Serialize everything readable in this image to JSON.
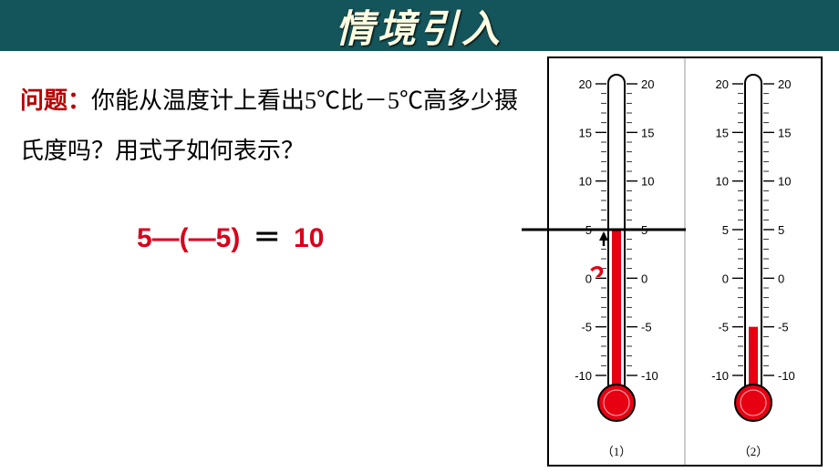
{
  "header": {
    "title": "情境引入",
    "bg_color": "#14555b",
    "title_color": "#fdfde0"
  },
  "question": {
    "label": "问题：",
    "text": "你能从温度计上看出5℃比－5℃高多少摄氏度吗？用式子如何表示？",
    "label_color": "#b80000",
    "text_color": "#000000",
    "fontsize": 26
  },
  "equation": {
    "lhs": "5―(―5)",
    "equals": "＝",
    "rhs": "10",
    "lhs_color": "#d9001b",
    "rhs_color": "#d9001b",
    "fontsize": 30
  },
  "thermometers": {
    "scale_min": -10,
    "scale_max": 20,
    "major_step": 5,
    "tick_labels": [
      20,
      15,
      10,
      5,
      0,
      -5,
      -10
    ],
    "tube_color": "#e60012",
    "outline_color": "#000000",
    "label_fontsize": 13,
    "items": [
      {
        "caption": "（1）",
        "value": 5
      },
      {
        "caption": "（2）",
        "value": -5
      }
    ]
  },
  "difference_marker": {
    "top_value": 5,
    "bottom_value": -5,
    "question_mark": "？",
    "mark_color": "#e60012",
    "line_color": "#000000"
  }
}
